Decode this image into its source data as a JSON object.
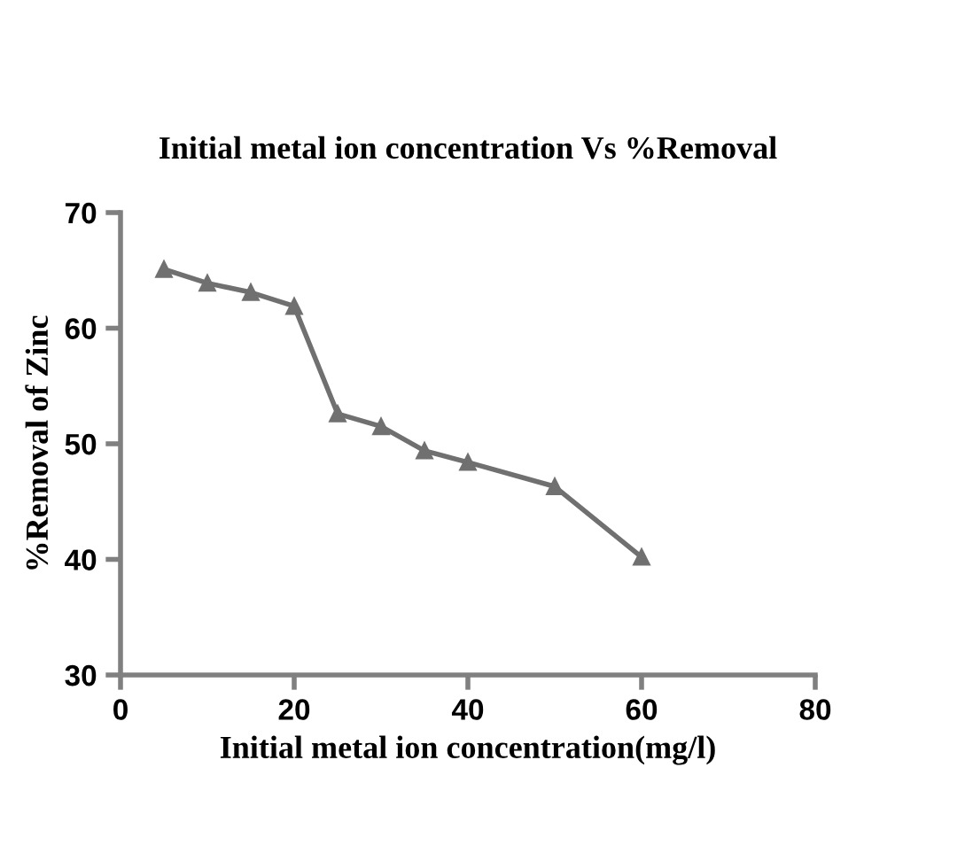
{
  "chart_data": {
    "type": "line",
    "title": "Initial metal ion concentration Vs %Removal",
    "xlabel": "Initial metal ion concentration(mg/l)",
    "ylabel": "%Removal of Zinc",
    "x": [
      5,
      10,
      15,
      20,
      25,
      30,
      35,
      40,
      50,
      60
    ],
    "series": [
      {
        "color": "#707070",
        "values": [
          65.1,
          63.9,
          63.1,
          61.9,
          52.6,
          51.5,
          49.4,
          48.4,
          46.3,
          40.2
        ]
      }
    ],
    "xlim": [
      0,
      80
    ],
    "xticks": [
      0,
      20,
      40,
      60,
      80
    ],
    "ylim": [
      30,
      70
    ],
    "yticks": [
      30,
      40,
      50,
      60,
      70
    ],
    "marker": "triangle",
    "line_style": "solid",
    "grid": false,
    "legend": false
  }
}
